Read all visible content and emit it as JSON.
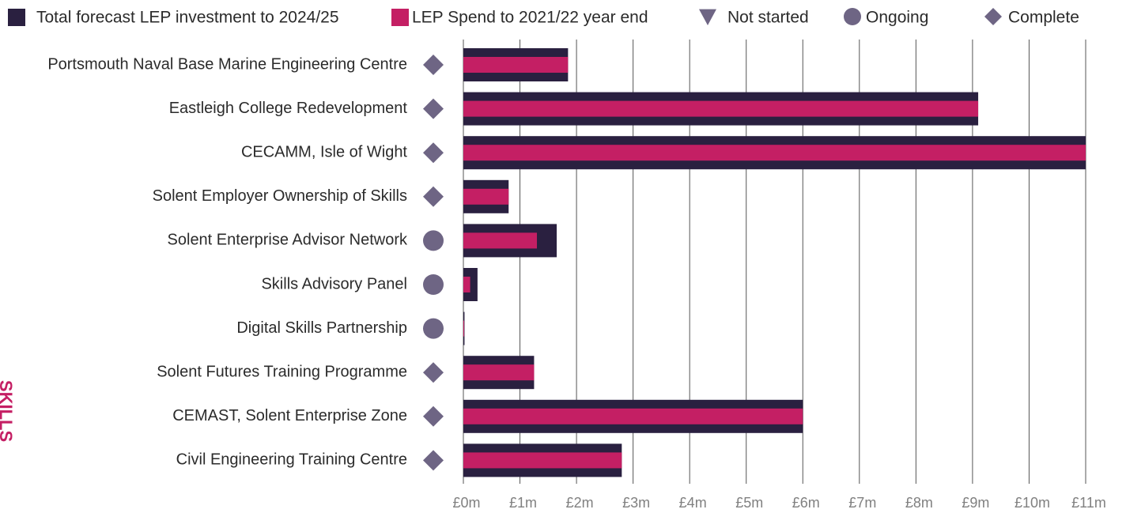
{
  "chart_data": {
    "type": "bar",
    "orientation": "horizontal",
    "side_label": "SKILLS",
    "categories": [
      "Portsmouth Naval Base Marine Engineering Centre",
      "Eastleigh College Redevelopment",
      "CECAMM, Isle of Wight",
      "Solent Employer Ownership of Skills",
      "Solent Enterprise Advisor Network",
      "Skills Advisory Panel",
      "Digital Skills Partnership",
      "Solent Futures Training Programme",
      "CEMAST, Solent Enterprise Zone",
      "Civil Engineering Training Centre"
    ],
    "series": [
      {
        "name": "Total forecast LEP investment to 2024/25",
        "color": "#2a2040",
        "values": [
          1.85,
          9.1,
          11.0,
          0.8,
          1.65,
          0.25,
          0.02,
          1.25,
          6.0,
          2.8
        ]
      },
      {
        "name": "LEP Spend to 2021/22 year end",
        "color": "#c41f64",
        "values": [
          1.85,
          9.1,
          11.0,
          0.8,
          1.3,
          0.12,
          0.01,
          1.25,
          6.0,
          2.8
        ]
      }
    ],
    "status_types": [
      {
        "name": "Not started",
        "shape": "triangle"
      },
      {
        "name": "Ongoing",
        "shape": "circle"
      },
      {
        "name": "Complete",
        "shape": "diamond"
      }
    ],
    "status_color": "#6e6584",
    "statuses": [
      "Complete",
      "Complete",
      "Complete",
      "Complete",
      "Ongoing",
      "Ongoing",
      "Ongoing",
      "Complete",
      "Complete",
      "Complete"
    ],
    "xlim": [
      0,
      11
    ],
    "xticks": [
      {
        "value": 0,
        "label": "£0m"
      },
      {
        "value": 1,
        "label": "£1m"
      },
      {
        "value": 2,
        "label": "£2m"
      },
      {
        "value": 3,
        "label": "£3m"
      },
      {
        "value": 4,
        "label": "£4m"
      },
      {
        "value": 5,
        "label": "£5m"
      },
      {
        "value": 6,
        "label": "£6m"
      },
      {
        "value": 7,
        "label": "£7m"
      },
      {
        "value": 8,
        "label": "£8m"
      },
      {
        "value": 9,
        "label": "£9m"
      },
      {
        "value": 10,
        "label": "£10m"
      },
      {
        "value": 11,
        "label": "£11m"
      }
    ],
    "grid": true
  }
}
